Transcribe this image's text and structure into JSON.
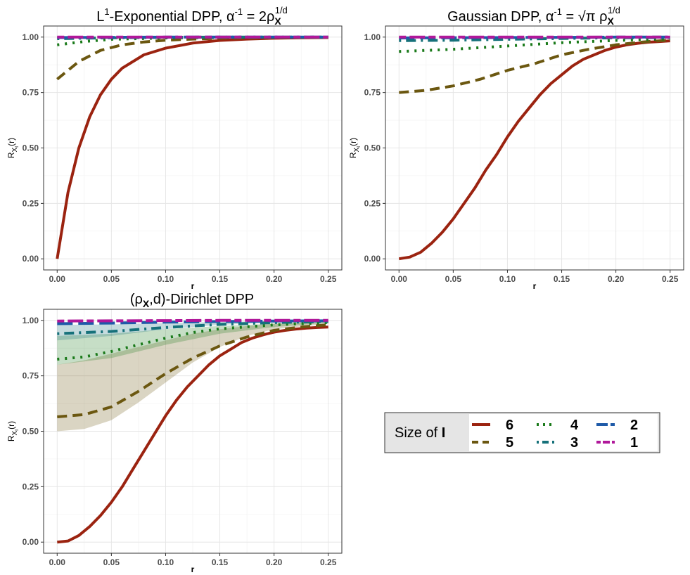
{
  "panels": [
    {
      "title": {
        "pre": "L",
        "sup1": "1",
        "mid": "-Exponential DPP, α",
        "sup2": "-1",
        "eq": " = 2ρ",
        "sub": "X",
        "sup3": "1/d"
      }
    },
    {
      "title": {
        "pre": "Gaussian DPP, α",
        "sup1": "-1",
        "eq": " = √π ρ",
        "sub": "X",
        "sup2": "1/d"
      }
    },
    {
      "title": {
        "open": "(ρ",
        "sub": "X",
        "rest": ",d)-Dirichlet DPP"
      }
    }
  ],
  "axes": {
    "xlabel": "r",
    "ylabel_main": "R",
    "ylabel_sub": "X",
    "ylabel_sub2": "I",
    "ylabel_arg": "(r)"
  },
  "legend": {
    "title_text": "Size of ",
    "title_bold": "I",
    "entries": [
      {
        "label": "6",
        "color": "#9b2310",
        "dash": "solid"
      },
      {
        "label": "5",
        "color": "#6b5710",
        "dash": "dashed"
      },
      {
        "label": "4",
        "color": "#1a7a1a",
        "dash": "dotted"
      },
      {
        "label": "3",
        "color": "#16717a",
        "dash": "dotdash"
      },
      {
        "label": "2",
        "color": "#1e5aa8",
        "dash": "longdash"
      },
      {
        "label": "1",
        "color": "#b0189a",
        "dash": "twodash"
      }
    ]
  },
  "chart_data": [
    {
      "type": "line",
      "title": "L1-Exponential DPP, α^-1 = 2ρX^(1/d)",
      "xlabel": "r",
      "ylabel": "RX(r)",
      "xlim": [
        0,
        0.25
      ],
      "ylim": [
        0,
        1
      ],
      "xticks": [
        0,
        0.05,
        0.1,
        0.15,
        0.2,
        0.25
      ],
      "yticks": [
        0,
        0.25,
        0.5,
        0.75,
        1
      ],
      "xtick_labels": [
        "0.00",
        "0.05",
        "0.10",
        "0.15",
        "0.20",
        "0.25"
      ],
      "ytick_labels": [
        "0.00",
        "0.25",
        "0.50",
        "0.75",
        "1.00"
      ],
      "grid": true,
      "series": [
        {
          "name": "6",
          "x": [
            0,
            0.01,
            0.02,
            0.03,
            0.04,
            0.05,
            0.06,
            0.08,
            0.1,
            0.125,
            0.15,
            0.175,
            0.2,
            0.225,
            0.25
          ],
          "y": [
            0,
            0.3,
            0.5,
            0.64,
            0.74,
            0.81,
            0.86,
            0.92,
            0.95,
            0.973,
            0.985,
            0.991,
            0.995,
            0.997,
            0.998
          ]
        },
        {
          "name": "5",
          "x": [
            0,
            0.02,
            0.04,
            0.06,
            0.08,
            0.1,
            0.125,
            0.15,
            0.2,
            0.25
          ],
          "y": [
            0.81,
            0.89,
            0.94,
            0.965,
            0.978,
            0.986,
            0.991,
            0.995,
            0.998,
            0.999
          ]
        },
        {
          "name": "4",
          "x": [
            0,
            0.025,
            0.05,
            0.1,
            0.15,
            0.2,
            0.25
          ],
          "y": [
            0.965,
            0.98,
            0.99,
            0.996,
            0.998,
            0.999,
            1.0
          ]
        },
        {
          "name": "3",
          "x": [
            0,
            0.05,
            0.1,
            0.15,
            0.2,
            0.25
          ],
          "y": [
            0.993,
            0.997,
            0.999,
            1.0,
            1.0,
            1.0
          ]
        },
        {
          "name": "2",
          "x": [
            0,
            0.05,
            0.1,
            0.15,
            0.2,
            0.25
          ],
          "y": [
            0.998,
            0.999,
            1.0,
            1.0,
            1.0,
            1.0
          ]
        },
        {
          "name": "1",
          "x": [
            0,
            0.05,
            0.1,
            0.15,
            0.2,
            0.25
          ],
          "y": [
            1.0,
            1.0,
            1.0,
            1.0,
            1.0,
            1.0
          ]
        }
      ]
    },
    {
      "type": "line",
      "title": "Gaussian DPP, α^-1 = √π ρX^(1/d)",
      "xlabel": "r",
      "ylabel": "RX(r)",
      "xlim": [
        0,
        0.25
      ],
      "ylim": [
        0,
        1
      ],
      "xticks": [
        0,
        0.05,
        0.1,
        0.15,
        0.2,
        0.25
      ],
      "yticks": [
        0,
        0.25,
        0.5,
        0.75,
        1
      ],
      "xtick_labels": [
        "0.00",
        "0.05",
        "0.10",
        "0.15",
        "0.20",
        "0.25"
      ],
      "ytick_labels": [
        "0.00",
        "0.25",
        "0.50",
        "0.75",
        "1.00"
      ],
      "grid": true,
      "series": [
        {
          "name": "6",
          "x": [
            0,
            0.01,
            0.02,
            0.03,
            0.04,
            0.05,
            0.06,
            0.07,
            0.08,
            0.09,
            0.1,
            0.11,
            0.12,
            0.13,
            0.14,
            0.15,
            0.16,
            0.17,
            0.18,
            0.19,
            0.2,
            0.21,
            0.22,
            0.23,
            0.24,
            0.25
          ],
          "y": [
            0,
            0.008,
            0.03,
            0.07,
            0.12,
            0.18,
            0.25,
            0.32,
            0.4,
            0.47,
            0.55,
            0.62,
            0.68,
            0.74,
            0.79,
            0.83,
            0.87,
            0.9,
            0.92,
            0.94,
            0.955,
            0.965,
            0.972,
            0.977,
            0.98,
            0.983
          ]
        },
        {
          "name": "5",
          "x": [
            0,
            0.025,
            0.05,
            0.075,
            0.1,
            0.125,
            0.15,
            0.175,
            0.2,
            0.225,
            0.25
          ],
          "y": [
            0.75,
            0.76,
            0.78,
            0.81,
            0.85,
            0.88,
            0.92,
            0.945,
            0.965,
            0.978,
            0.987
          ]
        },
        {
          "name": "4",
          "x": [
            0,
            0.05,
            0.1,
            0.15,
            0.2,
            0.25
          ],
          "y": [
            0.935,
            0.945,
            0.96,
            0.975,
            0.985,
            0.992
          ]
        },
        {
          "name": "3",
          "x": [
            0,
            0.05,
            0.1,
            0.15,
            0.2,
            0.25
          ],
          "y": [
            0.984,
            0.986,
            0.99,
            0.994,
            0.997,
            0.998
          ]
        },
        {
          "name": "2",
          "x": [
            0,
            0.05,
            0.1,
            0.15,
            0.2,
            0.25
          ],
          "y": [
            0.996,
            0.997,
            0.998,
            0.999,
            1.0,
            1.0
          ]
        },
        {
          "name": "1",
          "x": [
            0,
            0.05,
            0.1,
            0.15,
            0.2,
            0.25
          ],
          "y": [
            1.0,
            1.0,
            1.0,
            1.0,
            1.0,
            1.0
          ]
        }
      ]
    },
    {
      "type": "line",
      "title": "(ρX,d)-Dirichlet DPP",
      "xlabel": "r",
      "ylabel": "RX(r)",
      "xlim": [
        0,
        0.25
      ],
      "ylim": [
        0,
        1
      ],
      "xticks": [
        0,
        0.05,
        0.1,
        0.15,
        0.2,
        0.25
      ],
      "yticks": [
        0,
        0.25,
        0.5,
        0.75,
        1
      ],
      "xtick_labels": [
        "0.00",
        "0.05",
        "0.10",
        "0.15",
        "0.20",
        "0.25"
      ],
      "ytick_labels": [
        "0.00",
        "0.25",
        "0.50",
        "0.75",
        "1.00"
      ],
      "grid": true,
      "bands": [
        {
          "series": "5",
          "color": "#6b5710",
          "x": [
            0,
            0.025,
            0.05,
            0.075,
            0.1,
            0.125,
            0.15,
            0.175,
            0.2,
            0.25
          ],
          "lower": [
            0.5,
            0.51,
            0.55,
            0.63,
            0.72,
            0.81,
            0.88,
            0.93,
            0.96,
            0.985
          ],
          "upper": [
            0.8,
            0.82,
            0.85,
            0.88,
            0.91,
            0.94,
            0.96,
            0.975,
            0.985,
            0.995
          ]
        },
        {
          "series": "4",
          "color": "#1a7a1a",
          "x": [
            0,
            0.05,
            0.1,
            0.15,
            0.2,
            0.25
          ],
          "lower": [
            0.8,
            0.83,
            0.89,
            0.94,
            0.97,
            0.99
          ],
          "upper": [
            0.93,
            0.94,
            0.96,
            0.975,
            0.985,
            0.995
          ]
        },
        {
          "series": "3",
          "color": "#16717a",
          "x": [
            0,
            0.05,
            0.1,
            0.15,
            0.2,
            0.25
          ],
          "lower": [
            0.91,
            0.93,
            0.96,
            0.98,
            0.99,
            0.997
          ],
          "upper": [
            0.98,
            0.982,
            0.988,
            0.993,
            0.997,
            0.999
          ]
        }
      ],
      "series": [
        {
          "name": "6",
          "x": [
            0,
            0.01,
            0.02,
            0.03,
            0.04,
            0.05,
            0.06,
            0.07,
            0.08,
            0.09,
            0.1,
            0.11,
            0.12,
            0.13,
            0.14,
            0.15,
            0.16,
            0.17,
            0.18,
            0.19,
            0.2,
            0.21,
            0.22,
            0.23,
            0.24,
            0.25
          ],
          "y": [
            0,
            0.005,
            0.03,
            0.07,
            0.12,
            0.18,
            0.25,
            0.33,
            0.41,
            0.49,
            0.57,
            0.64,
            0.7,
            0.75,
            0.8,
            0.84,
            0.87,
            0.9,
            0.92,
            0.935,
            0.947,
            0.955,
            0.961,
            0.965,
            0.968,
            0.97
          ]
        },
        {
          "name": "5",
          "x": [
            0,
            0.025,
            0.05,
            0.075,
            0.1,
            0.125,
            0.15,
            0.175,
            0.2,
            0.225,
            0.25
          ],
          "y": [
            0.565,
            0.575,
            0.61,
            0.68,
            0.76,
            0.83,
            0.885,
            0.925,
            0.955,
            0.97,
            0.98
          ]
        },
        {
          "name": "4",
          "x": [
            0,
            0.025,
            0.05,
            0.075,
            0.1,
            0.125,
            0.15,
            0.2,
            0.25
          ],
          "y": [
            0.825,
            0.835,
            0.86,
            0.89,
            0.92,
            0.945,
            0.962,
            0.98,
            0.99
          ]
        },
        {
          "name": "3",
          "x": [
            0,
            0.05,
            0.1,
            0.15,
            0.2,
            0.25
          ],
          "y": [
            0.94,
            0.95,
            0.968,
            0.982,
            0.99,
            0.995
          ]
        },
        {
          "name": "2",
          "x": [
            0,
            0.05,
            0.1,
            0.15,
            0.2,
            0.25
          ],
          "y": [
            0.985,
            0.988,
            0.992,
            0.995,
            0.997,
            0.998
          ]
        },
        {
          "name": "1",
          "x": [
            0,
            0.05,
            0.1,
            0.15,
            0.2,
            0.25
          ],
          "y": [
            0.997,
            0.998,
            0.999,
            1.0,
            1.0,
            1.0
          ]
        }
      ]
    }
  ]
}
